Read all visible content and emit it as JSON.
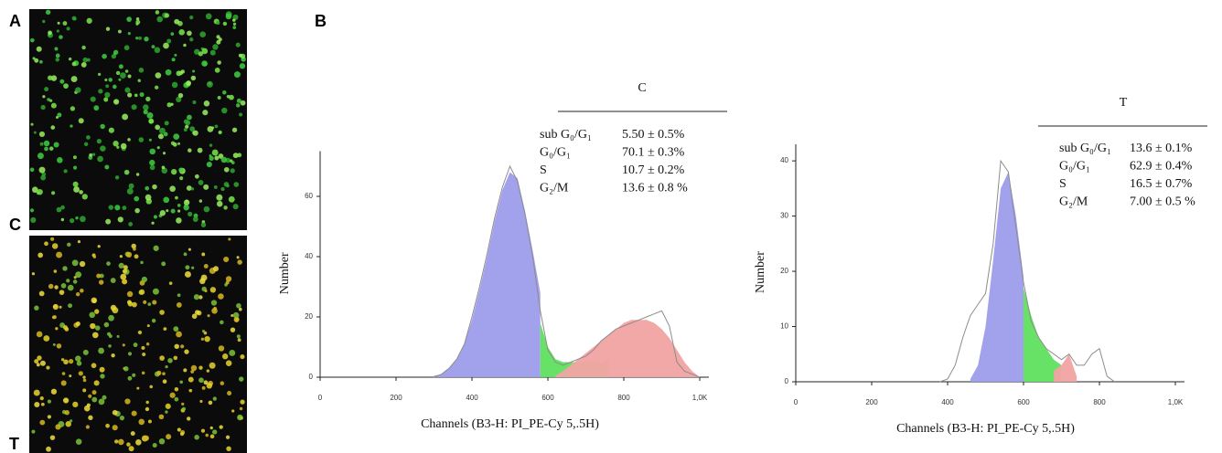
{
  "panel_labels": {
    "a": "A",
    "b": "B",
    "c": "C",
    "t": "T"
  },
  "chart_data": [
    {
      "type": "area",
      "xlabel": "Channels  (B3-H: PI_PE-Cy 5,.5H)",
      "ylabel": "Number",
      "xlim": [
        0,
        1000
      ],
      "ylim": [
        0,
        75
      ],
      "xticks": [
        0,
        200,
        400,
        600,
        800,
        {
          "value": 1000,
          "label": "1,0K"
        }
      ],
      "yticks": [
        0,
        20,
        40,
        60
      ],
      "x": [
        300,
        320,
        340,
        360,
        380,
        400,
        420,
        440,
        460,
        480,
        500,
        520,
        540,
        560,
        580,
        600,
        620,
        640,
        660,
        680,
        700,
        720,
        740,
        760,
        780,
        800,
        820,
        840,
        860,
        880,
        900,
        920,
        940,
        960,
        980,
        1000
      ],
      "series": [
        {
          "color": "#9d9deb",
          "values": [
            0.5,
            1,
            3,
            6,
            11,
            19,
            29,
            40,
            52,
            62,
            68,
            66,
            55,
            42,
            28,
            null,
            null,
            null,
            null,
            null,
            null,
            null,
            null,
            null,
            null,
            null,
            null,
            null,
            null,
            null,
            null,
            null,
            null,
            null,
            null,
            null
          ]
        },
        {
          "color": "#5fe05f",
          "values": [
            null,
            null,
            null,
            null,
            null,
            null,
            null,
            null,
            null,
            null,
            null,
            null,
            null,
            null,
            18,
            10,
            6,
            5,
            5,
            5,
            5,
            5,
            5,
            6,
            null,
            null,
            null,
            null,
            null,
            null,
            null,
            null,
            null,
            null,
            null,
            null
          ]
        },
        {
          "color": "#f2a3a3",
          "values": [
            null,
            null,
            null,
            null,
            null,
            null,
            null,
            null,
            null,
            null,
            null,
            null,
            null,
            null,
            null,
            null,
            0.5,
            2,
            4,
            6,
            8,
            10,
            12,
            14,
            16,
            18,
            19,
            19,
            19,
            18,
            16,
            13,
            9,
            5,
            2,
            0
          ]
        },
        {
          "color": "#8c8c8c",
          "fill": false,
          "values": [
            0,
            1,
            3,
            6,
            11,
            20,
            30,
            41,
            53,
            63,
            70,
            65,
            54,
            40,
            22,
            9,
            5,
            4,
            5,
            6,
            7,
            9,
            12,
            14,
            16,
            17,
            18,
            19,
            20,
            21,
            22,
            17,
            5,
            2,
            1,
            0
          ]
        }
      ],
      "table": {
        "title": "C",
        "rows": [
          [
            "sub G₀/G₁",
            "5.50 ± 0.5%"
          ],
          [
            "G₀/G₁",
            "70.1 ± 0.3%"
          ],
          [
            "S",
            "10.7 ± 0.2%"
          ],
          [
            "G₂/M",
            "13.6 ± 0.8 %"
          ]
        ]
      }
    },
    {
      "type": "area",
      "xlabel": "Channels  (B3-H: PI_PE-Cy 5,.5H)",
      "ylabel": "Number",
      "xlim": [
        0,
        1000
      ],
      "ylim": [
        0,
        43
      ],
      "xticks": [
        0,
        200,
        400,
        600,
        800,
        {
          "value": 1000,
          "label": "1,0K"
        }
      ],
      "yticks": [
        0,
        10,
        20,
        30,
        40
      ],
      "x": [
        380,
        400,
        420,
        440,
        460,
        480,
        500,
        520,
        540,
        560,
        580,
        600,
        620,
        640,
        660,
        680,
        700,
        720,
        740,
        760,
        780,
        800,
        820,
        840
      ],
      "series": [
        {
          "color": "#9d9deb",
          "values": [
            null,
            null,
            null,
            null,
            0.5,
            3,
            10,
            22,
            35,
            38,
            30,
            19,
            null,
            null,
            null,
            null,
            null,
            null,
            null,
            null,
            null,
            null,
            null,
            null
          ]
        },
        {
          "color": "#5fe05f",
          "values": [
            null,
            null,
            null,
            null,
            null,
            null,
            null,
            null,
            null,
            null,
            null,
            17,
            12,
            8,
            6,
            4,
            3,
            null,
            null,
            null,
            null,
            null,
            null,
            null
          ]
        },
        {
          "color": "#f2a3a3",
          "values": [
            null,
            null,
            null,
            null,
            null,
            null,
            null,
            null,
            null,
            null,
            null,
            null,
            null,
            null,
            null,
            2,
            3,
            5,
            1,
            null,
            null,
            null,
            null,
            null
          ]
        },
        {
          "color": "#8c8c8c",
          "fill": false,
          "values": [
            0,
            0.5,
            3,
            8,
            12,
            14,
            16,
            25,
            40,
            38,
            28,
            18,
            11,
            8,
            6,
            5,
            4,
            5,
            3,
            3,
            5,
            6,
            1,
            0
          ]
        }
      ],
      "table": {
        "title": "T",
        "rows": [
          [
            "sub G₀/G₁",
            "13.6 ± 0.1%"
          ],
          [
            "G₀/G₁",
            "62.9 ± 0.4%"
          ],
          [
            "S",
            "16.5 ± 0.7%"
          ],
          [
            "G₂/M",
            "7.00 ± 0.5 %"
          ]
        ]
      }
    }
  ]
}
